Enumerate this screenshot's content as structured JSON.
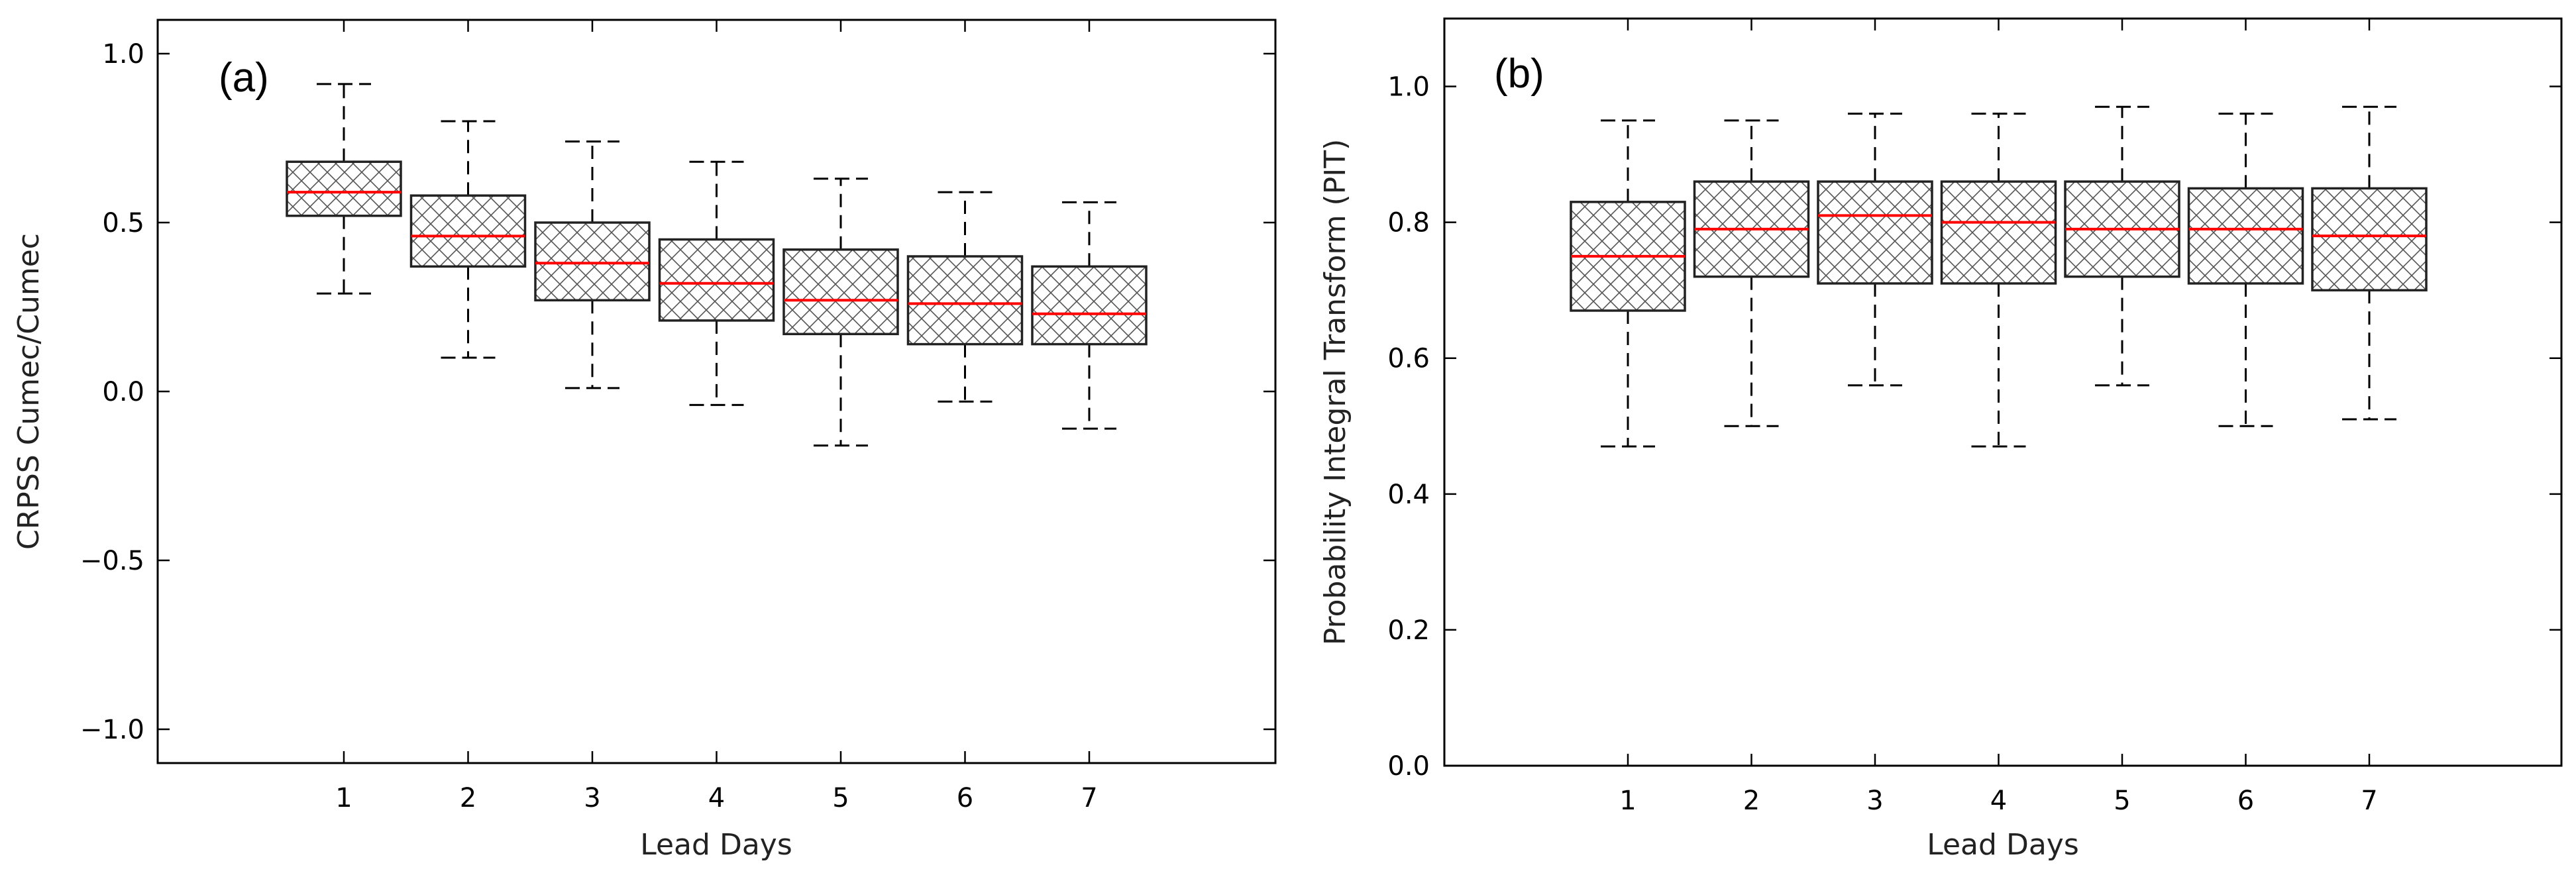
{
  "chart_data": [
    {
      "type": "box",
      "panel_label": "(a)",
      "title": "",
      "xlabel": "Lead Days",
      "ylabel": "CRPSS Cumec/Cumec",
      "categories": [
        "1",
        "2",
        "3",
        "4",
        "5",
        "6",
        "7"
      ],
      "ylim": [
        -1.1,
        1.1
      ],
      "yticks": [
        "1.0",
        "0.5",
        "0.0",
        "−0.5",
        "−1.0"
      ],
      "ytick_values": [
        1.0,
        0.5,
        0.0,
        -0.5,
        -1.0
      ],
      "grid": false,
      "hatch": "cross",
      "median_color": "#ff0000",
      "boxes": [
        {
          "whisker_low": 0.29,
          "q1": 0.52,
          "median": 0.59,
          "q3": 0.68,
          "whisker_high": 0.91
        },
        {
          "whisker_low": 0.1,
          "q1": 0.37,
          "median": 0.46,
          "q3": 0.58,
          "whisker_high": 0.8
        },
        {
          "whisker_low": 0.01,
          "q1": 0.27,
          "median": 0.38,
          "q3": 0.5,
          "whisker_high": 0.74
        },
        {
          "whisker_low": -0.04,
          "q1": 0.21,
          "median": 0.32,
          "q3": 0.45,
          "whisker_high": 0.68
        },
        {
          "whisker_low": -0.16,
          "q1": 0.17,
          "median": 0.27,
          "q3": 0.42,
          "whisker_high": 0.63
        },
        {
          "whisker_low": -0.03,
          "q1": 0.14,
          "median": 0.26,
          "q3": 0.4,
          "whisker_high": 0.59
        },
        {
          "whisker_low": -0.11,
          "q1": 0.14,
          "median": 0.23,
          "q3": 0.37,
          "whisker_high": 0.56
        }
      ]
    },
    {
      "type": "box",
      "panel_label": "(b)",
      "title": "",
      "xlabel": "Lead Days",
      "ylabel": "Probability Integral Transform (PIT)",
      "categories": [
        "1",
        "2",
        "3",
        "4",
        "5",
        "6",
        "7"
      ],
      "ylim": [
        0.0,
        1.1
      ],
      "yticks": [
        "1.0",
        "0.8",
        "0.6",
        "0.4",
        "0.2",
        "0.0"
      ],
      "ytick_values": [
        1.0,
        0.8,
        0.6,
        0.4,
        0.2,
        0.0
      ],
      "grid": false,
      "hatch": "cross",
      "median_color": "#ff0000",
      "boxes": [
        {
          "whisker_low": 0.47,
          "q1": 0.67,
          "median": 0.75,
          "q3": 0.83,
          "whisker_high": 0.95
        },
        {
          "whisker_low": 0.5,
          "q1": 0.72,
          "median": 0.79,
          "q3": 0.86,
          "whisker_high": 0.95
        },
        {
          "whisker_low": 0.56,
          "q1": 0.71,
          "median": 0.81,
          "q3": 0.86,
          "whisker_high": 0.96
        },
        {
          "whisker_low": 0.47,
          "q1": 0.71,
          "median": 0.8,
          "q3": 0.86,
          "whisker_high": 0.96
        },
        {
          "whisker_low": 0.56,
          "q1": 0.72,
          "median": 0.79,
          "q3": 0.86,
          "whisker_high": 0.97
        },
        {
          "whisker_low": 0.5,
          "q1": 0.71,
          "median": 0.79,
          "q3": 0.85,
          "whisker_high": 0.96
        },
        {
          "whisker_low": 0.51,
          "q1": 0.7,
          "median": 0.78,
          "q3": 0.85,
          "whisker_high": 0.97
        }
      ]
    }
  ]
}
